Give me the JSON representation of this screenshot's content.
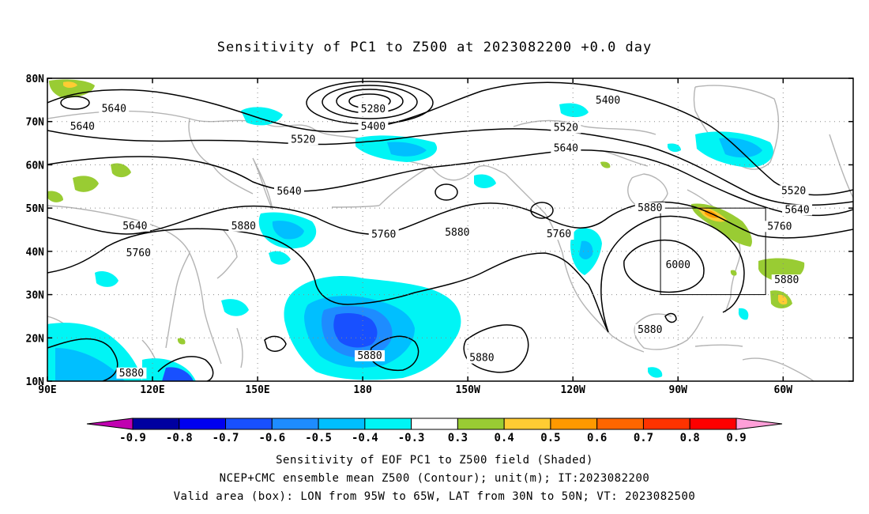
{
  "title": "Sensitivity of PC1 to Z500 at 2023082200 +0.0 day",
  "captions": [
    "Sensitivity of EOF PC1 to Z500 field (Shaded)",
    "NCEP+CMC ensemble mean Z500 (Contour); unit(m); IT:2023082200",
    "Valid area (box): LON from 95W to 65W, LAT from 30N to 50N; VT: 2023082500"
  ],
  "map": {
    "lon_range_deg_east": [
      90,
      320
    ],
    "lat_range": [
      10,
      80
    ],
    "x_ticks": [
      {
        "lon": 90,
        "label": "90E"
      },
      {
        "lon": 120,
        "label": "120E"
      },
      {
        "lon": 150,
        "label": "150E"
      },
      {
        "lon": 180,
        "label": "180"
      },
      {
        "lon": 210,
        "label": "150W"
      },
      {
        "lon": 240,
        "label": "120W"
      },
      {
        "lon": 270,
        "label": "90W"
      },
      {
        "lon": 300,
        "label": "60W"
      }
    ],
    "y_ticks": [
      {
        "lat": 10,
        "label": "10N"
      },
      {
        "lat": 20,
        "label": "20N"
      },
      {
        "lat": 30,
        "label": "30N"
      },
      {
        "lat": 40,
        "label": "40N"
      },
      {
        "lat": 50,
        "label": "50N"
      },
      {
        "lat": 60,
        "label": "60N"
      },
      {
        "lat": 70,
        "label": "70N"
      },
      {
        "lat": 80,
        "label": "80N"
      }
    ],
    "valid_box": {
      "lon_min": 265,
      "lon_max": 295,
      "lat_min": 30,
      "lat_max": 50
    },
    "contour_labels": [
      {
        "text": "5640",
        "lon": 109,
        "lat": 72.6
      },
      {
        "text": "5640",
        "lon": 100,
        "lat": 68.5
      },
      {
        "text": "5280",
        "lon": 183,
        "lat": 72.5
      },
      {
        "text": "5400",
        "lon": 183,
        "lat": 68.5
      },
      {
        "text": "5520",
        "lon": 163,
        "lat": 65.5
      },
      {
        "text": "5400",
        "lon": 250,
        "lat": 74.5
      },
      {
        "text": "5520",
        "lon": 238,
        "lat": 68.2
      },
      {
        "text": "5640",
        "lon": 238,
        "lat": 63.5
      },
      {
        "text": "5640",
        "lon": 159,
        "lat": 53.5
      },
      {
        "text": "5640",
        "lon": 115,
        "lat": 45.5
      },
      {
        "text": "5760",
        "lon": 116,
        "lat": 39.2
      },
      {
        "text": "5880",
        "lon": 146,
        "lat": 45.5
      },
      {
        "text": "5760",
        "lon": 186,
        "lat": 43.5
      },
      {
        "text": "5880",
        "lon": 207,
        "lat": 44.0
      },
      {
        "text": "5760",
        "lon": 236,
        "lat": 43.6
      },
      {
        "text": "5880",
        "lon": 262,
        "lat": 49.7
      },
      {
        "text": "6000",
        "lon": 270,
        "lat": 36.5
      },
      {
        "text": "5520",
        "lon": 303,
        "lat": 53.6
      },
      {
        "text": "5640",
        "lon": 304,
        "lat": 49.2
      },
      {
        "text": "5760",
        "lon": 299,
        "lat": 45.4
      },
      {
        "text": "5880",
        "lon": 301,
        "lat": 33.0
      },
      {
        "text": "5880",
        "lon": 262,
        "lat": 21.5
      },
      {
        "text": "5880",
        "lon": 182,
        "lat": 15.5
      },
      {
        "text": "5880",
        "lon": 214,
        "lat": 15.0
      },
      {
        "text": "5880",
        "lon": 114,
        "lat": 11.5
      }
    ]
  },
  "colorbar": {
    "left_arrow_color": "#c000b0",
    "right_arrow_color": "#ff9fd8",
    "bins": [
      {
        "color": "#0000a0"
      },
      {
        "color": "#0000f0"
      },
      {
        "color": "#1850ff"
      },
      {
        "color": "#1e8cff"
      },
      {
        "color": "#00bfff"
      },
      {
        "color": "#00f5f5"
      },
      {
        "color": "#ffffff"
      },
      {
        "color": "#99cc33"
      },
      {
        "color": "#ffcc33"
      },
      {
        "color": "#ff9900"
      },
      {
        "color": "#ff6600"
      },
      {
        "color": "#ff3300"
      },
      {
        "color": "#ff0000"
      }
    ],
    "labels": [
      "-0.9",
      "-0.8",
      "-0.7",
      "-0.6",
      "-0.5",
      "-0.4",
      "-0.3",
      "0.3",
      "0.4",
      "0.5",
      "0.6",
      "0.7",
      "0.8",
      "0.9"
    ]
  }
}
